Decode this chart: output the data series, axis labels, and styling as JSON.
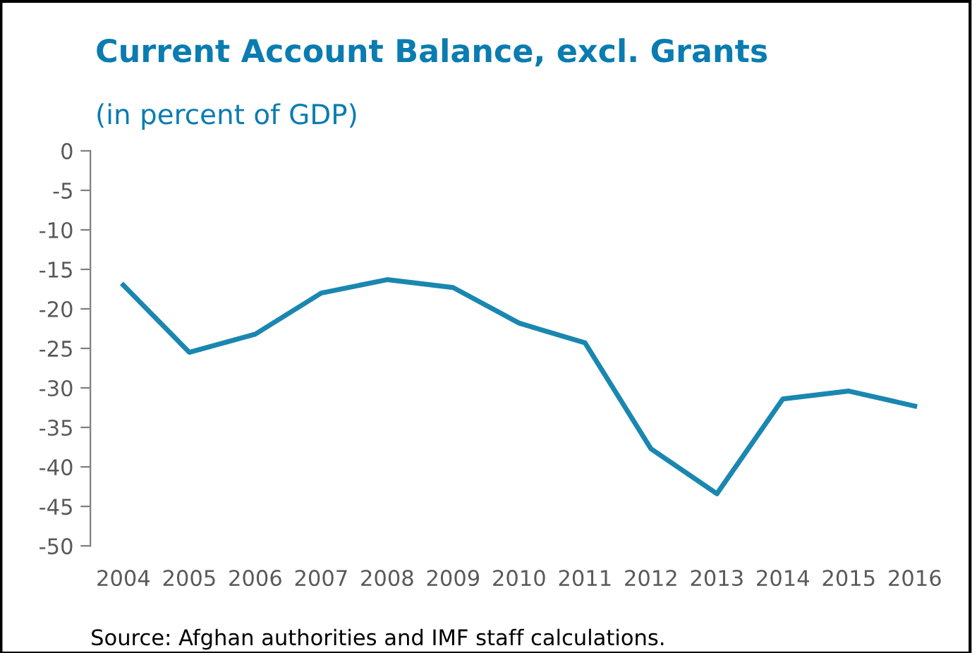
{
  "chart_data": {
    "type": "line",
    "title": "Current Account Balance, excl. Grants",
    "subtitle": "(in percent of GDP)",
    "categories": [
      "2004",
      "2005",
      "2006",
      "2007",
      "2008",
      "2009",
      "2010",
      "2011",
      "2012",
      "2013",
      "2014",
      "2015",
      "2016"
    ],
    "series": [
      {
        "color": "#1a87b0",
        "values": [
          -17.0,
          -25.5,
          -23.2,
          -18.0,
          -16.3,
          -17.3,
          -21.8,
          -24.3,
          -37.7,
          -43.4,
          -31.4,
          -30.4,
          -32.3
        ]
      }
    ],
    "ylim": [
      -50,
      0
    ],
    "yticks": [
      -50,
      -45,
      -40,
      -35,
      -30,
      -25,
      -20,
      -15,
      -10,
      -5,
      0
    ],
    "grid": false,
    "legend": false,
    "marker": "none",
    "line_style": "solid",
    "annotations": [
      "Source: Afghan authorities and IMF staff calculations."
    ]
  }
}
